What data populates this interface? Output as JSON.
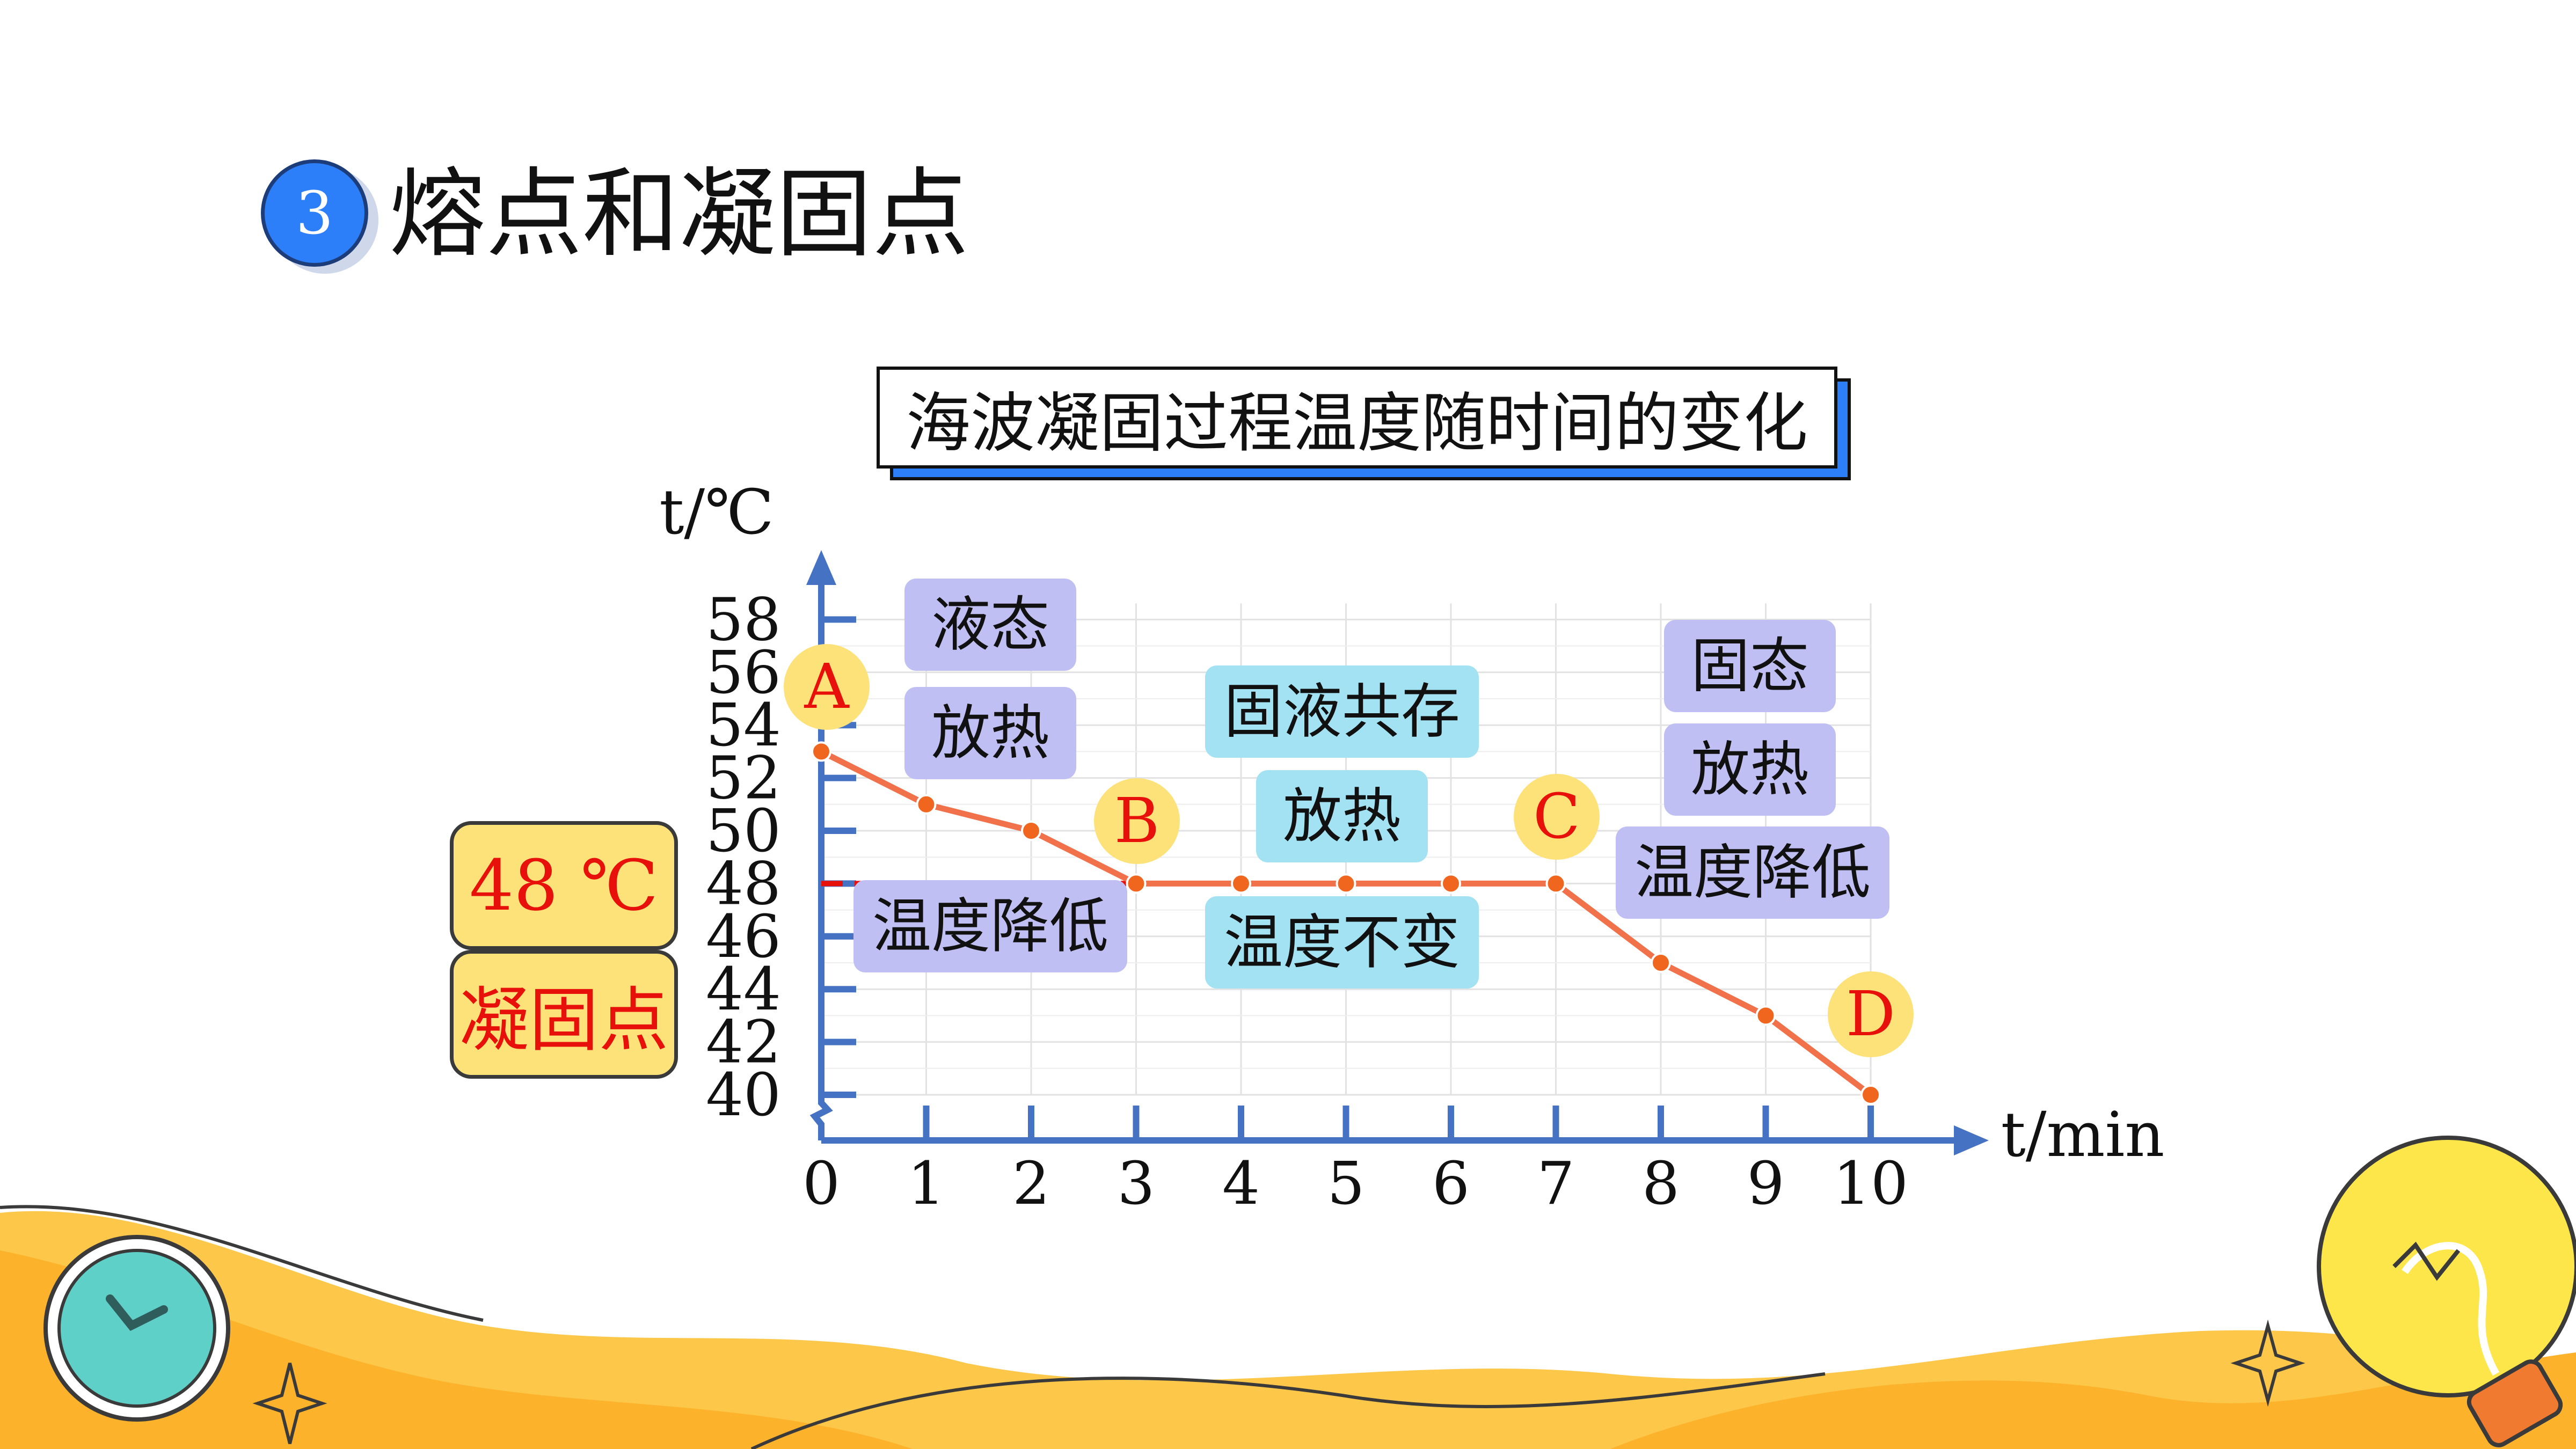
{
  "heading": {
    "number": "3",
    "title": "熔点和凝固点"
  },
  "notes": {
    "temperature": "48 ℃",
    "name": "凝固点"
  },
  "chart_data": {
    "type": "line",
    "title": "海波凝固过程温度随时间的变化",
    "xlabel": "t/min",
    "ylabel": "t/℃",
    "xlim": [
      0,
      10
    ],
    "ylim": [
      40,
      58
    ],
    "x_ticks": [
      "0",
      "1",
      "2",
      "3",
      "4",
      "5",
      "6",
      "7",
      "8",
      "9",
      "10"
    ],
    "y_ticks": [
      "40",
      "42",
      "44",
      "46",
      "48",
      "50",
      "52",
      "54",
      "56",
      "58"
    ],
    "grid": true,
    "x": [
      0,
      1,
      2,
      3,
      4,
      5,
      6,
      7,
      8,
      9,
      10
    ],
    "y": [
      53,
      51,
      50,
      48,
      48,
      48,
      48,
      48,
      45,
      43,
      40
    ],
    "reference_line": {
      "y": 48,
      "x_from": 0,
      "x_to": 3,
      "style": "dashed",
      "color": "#e8100b"
    },
    "point_labels": [
      {
        "text": "A",
        "x": 0,
        "y": 53
      },
      {
        "text": "B",
        "x": 3,
        "y": 48
      },
      {
        "text": "C",
        "x": 7,
        "y": 48
      },
      {
        "text": "D",
        "x": 10,
        "y": 40
      }
    ],
    "annotations": [
      {
        "text": "液态",
        "style": "purple"
      },
      {
        "text": "放热",
        "style": "purple"
      },
      {
        "text": "温度降低",
        "style": "purple"
      },
      {
        "text": "固液共存",
        "style": "cyan"
      },
      {
        "text": "放热",
        "style": "cyan"
      },
      {
        "text": "温度不变",
        "style": "cyan"
      },
      {
        "text": "固态",
        "style": "purple"
      },
      {
        "text": "放热",
        "style": "purple"
      },
      {
        "text": "温度降低",
        "style": "purple"
      }
    ],
    "colors": {
      "line": "#f0714a",
      "point": "#f0661f",
      "axis": "#4672c4",
      "point_label_bg": "#fde27a",
      "point_label_text": "#e8100b",
      "purple_box": "#c0bff3",
      "cyan_box": "#a2e2f2"
    }
  }
}
